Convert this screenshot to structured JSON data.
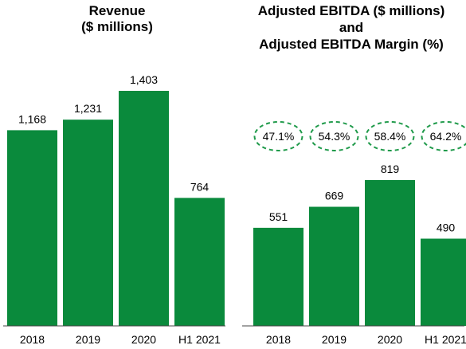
{
  "colors": {
    "bar": "#0a8a3c",
    "margin_ring": "#1f9a4a",
    "axis": "#444444"
  },
  "chart_data": [
    {
      "type": "bar",
      "title_lines": [
        "Revenue",
        "($ millions)"
      ],
      "categories": [
        "2018",
        "2019",
        "2020",
        "H1 2021"
      ],
      "values": [
        1168,
        1231,
        1403,
        764
      ],
      "value_labels": [
        "1,168",
        "1,231",
        "1,403",
        "764"
      ],
      "xlabel": "",
      "ylabel": "",
      "ylim": [
        0,
        1403
      ],
      "grid": false
    },
    {
      "type": "bar",
      "title_lines": [
        "Adjusted EBITDA ($ millions)",
        "and",
        "Adjusted EBITDA Margin (%)"
      ],
      "categories": [
        "2018",
        "2019",
        "2020",
        "H1 2021"
      ],
      "values": [
        551,
        669,
        819,
        490
      ],
      "value_labels": [
        "551",
        "669",
        "819",
        "490"
      ],
      "margins": [
        47.1,
        54.3,
        58.4,
        64.2
      ],
      "margin_labels": [
        "47.1%",
        "54.3%",
        "58.4%",
        "64.2%"
      ],
      "xlabel": "",
      "ylabel": "",
      "ylim": [
        0,
        819
      ],
      "grid": false
    }
  ]
}
